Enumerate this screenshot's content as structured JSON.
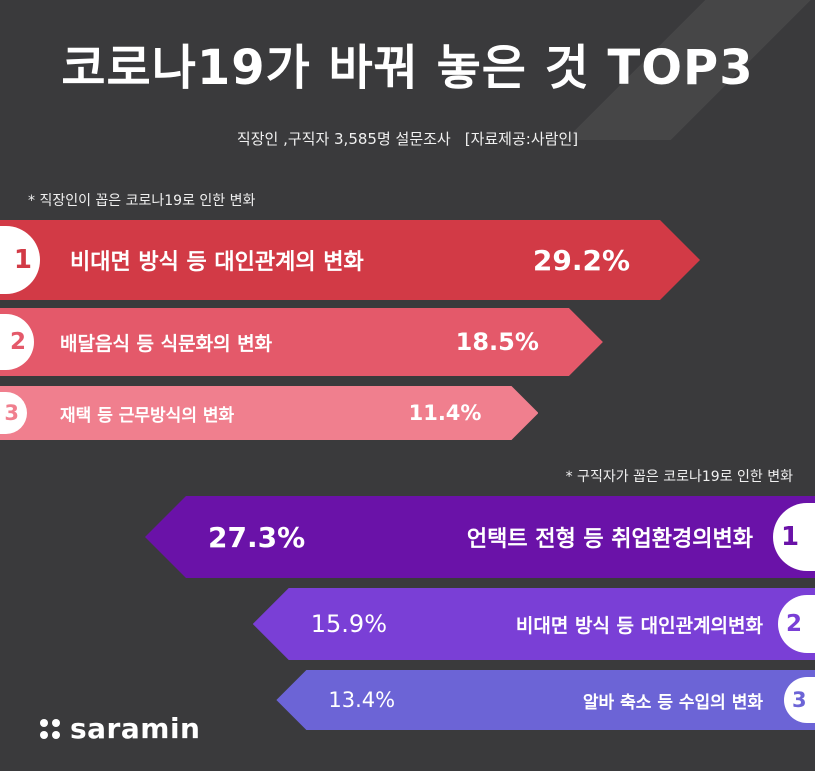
{
  "title": "코로나19가 바꿔 놓은 것 TOP3",
  "subtitle": "직장인 ,구직자 3,585명 설문조사",
  "source": "[자료제공:사람인]",
  "chart_data": [
    {
      "type": "bar",
      "title": "* 직장인이 꼽은 코로나19로 인한 변화",
      "categories": [
        "비대면 방식 등 대인관계의 변화",
        "배달음식 등 식문화의 변화",
        "재택 등 근무방식의 변화"
      ],
      "values": [
        29.2,
        18.5,
        11.4
      ],
      "value_labels": [
        "29.2%",
        "18.5%",
        "11.4%"
      ],
      "ranks": [
        "1",
        "2",
        "3"
      ],
      "colors": [
        "#d23a46",
        "#e4596a",
        "#f07f8e"
      ]
    },
    {
      "type": "bar",
      "title": "* 구직자가 꼽은 코로나19로 인한 변화",
      "categories": [
        "언택트 전형 등 취업환경의변화",
        "비대면 방식 등 대인관계의변화",
        "알바 축소 등 수입의 변화"
      ],
      "values": [
        27.3,
        15.9,
        13.4
      ],
      "value_labels": [
        "27.3%",
        "15.9%",
        "13.4%"
      ],
      "ranks": [
        "1",
        "2",
        "3"
      ],
      "colors": [
        "#6a12a8",
        "#7a3fd6",
        "#6c64d6"
      ]
    }
  ],
  "logo": {
    "text": "saramin"
  }
}
